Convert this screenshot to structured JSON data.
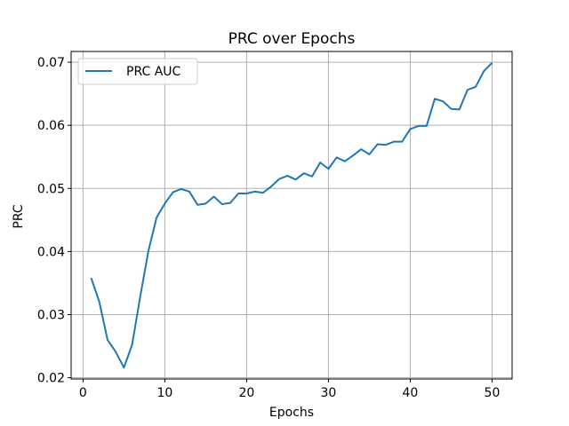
{
  "chart_data": {
    "type": "line",
    "title": "PRC over Epochs",
    "xlabel": "Epochs",
    "ylabel": "PRC",
    "xlim": [
      -1.45,
      52.45
    ],
    "ylim": [
      0.0198,
      0.0717
    ],
    "xticks": [
      0,
      10,
      20,
      30,
      40,
      50
    ],
    "yticks": [
      0.02,
      0.03,
      0.04,
      0.05,
      0.06,
      0.07
    ],
    "ytick_labels": [
      "0.02",
      "0.03",
      "0.04",
      "0.05",
      "0.06",
      "0.07"
    ],
    "grid": true,
    "legend_position": "top-left",
    "series": [
      {
        "name": "PRC AUC",
        "color": "#1f77b4",
        "x": [
          1,
          2,
          3,
          4,
          5,
          6,
          7,
          8,
          9,
          10,
          11,
          12,
          13,
          14,
          15,
          16,
          17,
          18,
          19,
          20,
          21,
          22,
          23,
          24,
          25,
          26,
          27,
          28,
          29,
          30,
          31,
          32,
          33,
          34,
          35,
          36,
          37,
          38,
          39,
          40,
          41,
          42,
          43,
          44,
          45,
          46,
          47,
          48,
          49,
          50
        ],
        "y": [
          0.0358,
          0.032,
          0.026,
          0.0241,
          0.0216,
          0.0252,
          0.0329,
          0.0401,
          0.0454,
          0.0476,
          0.0494,
          0.0499,
          0.0495,
          0.0474,
          0.0476,
          0.0487,
          0.0475,
          0.0477,
          0.0492,
          0.0492,
          0.0495,
          0.0493,
          0.0503,
          0.0515,
          0.052,
          0.0514,
          0.0524,
          0.0519,
          0.0541,
          0.0531,
          0.0549,
          0.0543,
          0.0552,
          0.0562,
          0.0554,
          0.057,
          0.0569,
          0.0574,
          0.0574,
          0.0594,
          0.0599,
          0.0599,
          0.0642,
          0.0638,
          0.0626,
          0.0625,
          0.0656,
          0.0661,
          0.0686,
          0.0699
        ]
      }
    ]
  }
}
